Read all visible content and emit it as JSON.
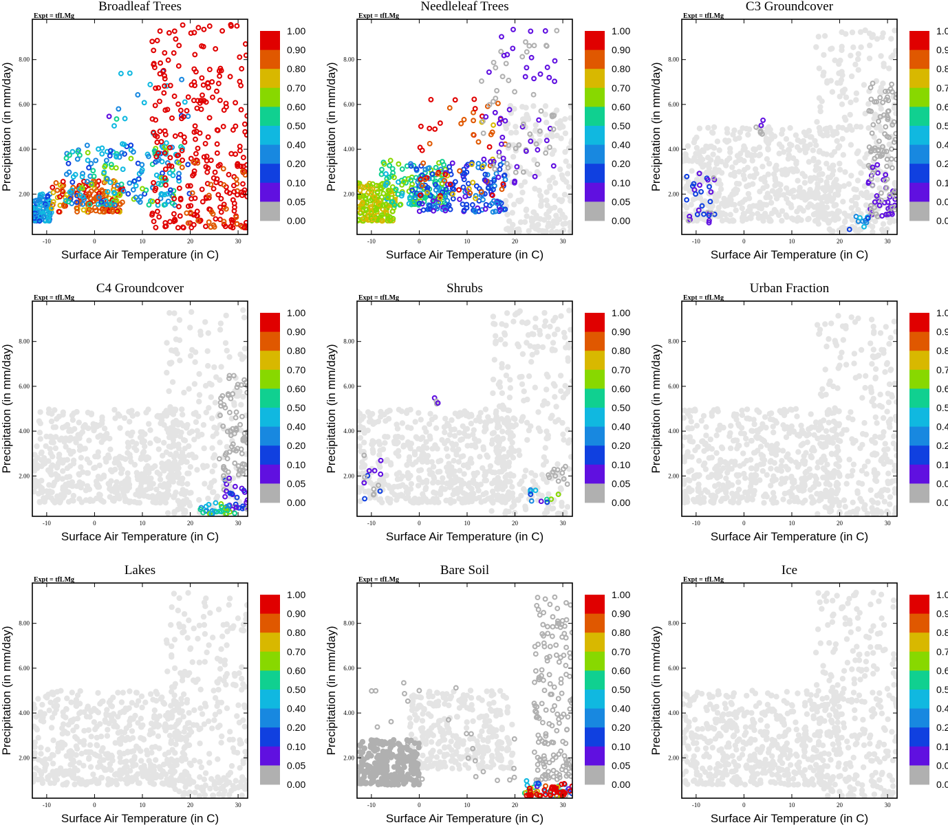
{
  "figure": {
    "experiment_label": "Expt = tfLMg",
    "colors": {
      "background_points": "#e4e4e4",
      "zero_points": "#b0b0b0",
      "frame": "#000000"
    }
  },
  "colorbar": {
    "levels": [
      "1.00",
      "0.90",
      "0.80",
      "0.70",
      "0.60",
      "0.50",
      "0.40",
      "0.20",
      "0.10",
      "0.05",
      "0.00"
    ],
    "colors": [
      "#e00000",
      "#e05800",
      "#d8b800",
      "#88d800",
      "#10d090",
      "#10b8e0",
      "#1888e0",
      "#1040e0",
      "#6010e0",
      "#b0b0b0"
    ]
  },
  "chart_data": [
    {
      "type": "scatter",
      "title": "Broadleaf Trees",
      "xlabel": "Surface Air Temperature (in C)",
      "ylabel": "Precipitation (in mm/day)",
      "xlim": [
        -13,
        32
      ],
      "ylim": [
        0.2,
        9.8
      ],
      "xticks": [
        "-10",
        "0",
        "10",
        "20",
        "30"
      ],
      "yticks": [
        "2.00",
        "4.00",
        "6.00",
        "8.00"
      ],
      "clusters": [
        {
          "x": [
            -13,
            -9
          ],
          "y": [
            0.8,
            2.0
          ],
          "n": 90,
          "c": [
            0.1,
            0.45
          ],
          "filled": false
        },
        {
          "x": [
            -9,
            6
          ],
          "y": [
            1.2,
            2.6
          ],
          "n": 150,
          "c": [
            0.7,
            0.9
          ],
          "filled": false
        },
        {
          "x": [
            -6,
            18
          ],
          "y": [
            1.5,
            4.2
          ],
          "n": 160,
          "c": [
            0.1,
            0.6
          ],
          "filled": false
        },
        {
          "x": [
            3,
            20
          ],
          "y": [
            2.0,
            7.8
          ],
          "n": 40,
          "c": [
            0.05,
            0.5
          ],
          "filled": false
        },
        {
          "x": [
            12,
            32
          ],
          "y": [
            0.5,
            9.6
          ],
          "n": 240,
          "c": [
            0.9,
            1.0
          ],
          "filled": false
        },
        {
          "x": [
            18,
            32
          ],
          "y": [
            0.5,
            3.5
          ],
          "n": 60,
          "c": [
            0.8,
            0.9
          ],
          "filled": false
        }
      ]
    },
    {
      "type": "scatter",
      "title": "Needleleaf Trees",
      "xlabel": "Surface Air Temperature (in C)",
      "ylabel": "Precipitation (in mm/day)",
      "xlim": [
        -13,
        32
      ],
      "ylim": [
        0.2,
        9.8
      ],
      "xticks": [
        "-10",
        "0",
        "10",
        "20",
        "30"
      ],
      "yticks": [
        "2.00",
        "4.00",
        "6.00",
        "8.00"
      ],
      "clusters": [
        {
          "x": [
            -13,
            -5
          ],
          "y": [
            0.8,
            2.5
          ],
          "n": 160,
          "c": [
            0.6,
            0.7
          ],
          "filled": false
        },
        {
          "x": [
            -8,
            6
          ],
          "y": [
            1.5,
            3.5
          ],
          "n": 120,
          "c": [
            0.4,
            0.6
          ],
          "filled": false
        },
        {
          "x": [
            -2,
            18
          ],
          "y": [
            1.2,
            3.5
          ],
          "n": 160,
          "c": [
            0.05,
            0.2
          ],
          "filled": false
        },
        {
          "x": [
            0,
            18
          ],
          "y": [
            1.8,
            6.3
          ],
          "n": 60,
          "c": [
            0.7,
            0.9
          ],
          "filled": false
        },
        {
          "x": [
            13,
            29
          ],
          "y": [
            2.5,
            9.4
          ],
          "n": 90,
          "c": [
            0.0,
            0.05
          ],
          "filled": false
        },
        {
          "x": [
            18,
            32
          ],
          "y": [
            0.3,
            6.0
          ],
          "n": 180,
          "c": [
            -1,
            -1
          ],
          "filled": true
        }
      ]
    },
    {
      "type": "scatter",
      "title": "C3 Groundcover",
      "xlabel": "Surface Air Temperature (in C)",
      "ylabel": "Precipitation (in mm/day)",
      "xlim": [
        -13,
        32
      ],
      "ylim": [
        0.2,
        9.8
      ],
      "xticks": [
        "-10",
        "0",
        "10",
        "20",
        "30"
      ],
      "yticks": [
        "2.00",
        "4.00",
        "6.00",
        "8.00"
      ],
      "clusters": [
        {
          "x": [
            -13,
            20
          ],
          "y": [
            0.8,
            5.0
          ],
          "n": 520,
          "c": [
            -1,
            -1
          ],
          "filled": true
        },
        {
          "x": [
            15,
            32
          ],
          "y": [
            0.3,
            9.4
          ],
          "n": 260,
          "c": [
            -1,
            -1
          ],
          "filled": true
        },
        {
          "x": [
            -12,
            -6
          ],
          "y": [
            0.7,
            3.0
          ],
          "n": 30,
          "c": [
            0.0,
            0.1
          ],
          "filled": false
        },
        {
          "x": [
            2,
            5
          ],
          "y": [
            4.6,
            5.7
          ],
          "n": 6,
          "c": [
            0.0,
            0.05
          ],
          "filled": false
        },
        {
          "x": [
            26,
            32
          ],
          "y": [
            1.0,
            3.5
          ],
          "n": 60,
          "c": [
            0.0,
            0.05
          ],
          "filled": false
        },
        {
          "x": [
            22,
            26
          ],
          "y": [
            0.4,
            1.0
          ],
          "n": 10,
          "c": [
            0.1,
            0.45
          ],
          "filled": false
        },
        {
          "x": [
            26,
            32
          ],
          "y": [
            3.5,
            7.0
          ],
          "n": 60,
          "c": [
            0.0,
            0.0
          ],
          "filled": false
        }
      ]
    },
    {
      "type": "scatter",
      "title": "C4 Groundcover",
      "xlabel": "Surface Air Temperature (in C)",
      "ylabel": "Precipitation (in mm/day)",
      "xlim": [
        -13,
        32
      ],
      "ylim": [
        0.2,
        9.8
      ],
      "xticks": [
        "-10",
        "0",
        "10",
        "20",
        "30"
      ],
      "yticks": [
        "2.00",
        "4.00",
        "6.00",
        "8.00"
      ],
      "clusters": [
        {
          "x": [
            -13,
            20
          ],
          "y": [
            0.8,
            5.0
          ],
          "n": 520,
          "c": [
            -1,
            -1
          ],
          "filled": true
        },
        {
          "x": [
            15,
            32
          ],
          "y": [
            0.3,
            9.4
          ],
          "n": 200,
          "c": [
            -1,
            -1
          ],
          "filled": true
        },
        {
          "x": [
            26,
            32
          ],
          "y": [
            2.0,
            6.5
          ],
          "n": 70,
          "c": [
            0.0,
            0.0
          ],
          "filled": false
        },
        {
          "x": [
            27,
            32
          ],
          "y": [
            0.5,
            2.4
          ],
          "n": 30,
          "c": [
            0.0,
            0.1
          ],
          "filled": false
        },
        {
          "x": [
            22,
            30
          ],
          "y": [
            0.3,
            0.8
          ],
          "n": 30,
          "c": [
            0.2,
            0.6
          ],
          "filled": false
        }
      ]
    },
    {
      "type": "scatter",
      "title": "Shrubs",
      "xlabel": "Surface Air Temperature (in C)",
      "ylabel": "Precipitation (in mm/day)",
      "xlim": [
        -13,
        32
      ],
      "ylim": [
        0.2,
        9.8
      ],
      "xticks": [
        "-10",
        "0",
        "10",
        "20",
        "30"
      ],
      "yticks": [
        "2.00",
        "4.00",
        "6.00",
        "8.00"
      ],
      "clusters": [
        {
          "x": [
            -13,
            20
          ],
          "y": [
            0.8,
            5.0
          ],
          "n": 520,
          "c": [
            -1,
            -1
          ],
          "filled": true
        },
        {
          "x": [
            15,
            32
          ],
          "y": [
            0.3,
            9.4
          ],
          "n": 240,
          "c": [
            -1,
            -1
          ],
          "filled": true
        },
        {
          "x": [
            -12,
            -7
          ],
          "y": [
            0.9,
            3.0
          ],
          "n": 14,
          "c": [
            0.0,
            0.1
          ],
          "filled": false
        },
        {
          "x": [
            2,
            4
          ],
          "y": [
            4.7,
            5.6
          ],
          "n": 4,
          "c": [
            0.0,
            0.05
          ],
          "filled": false
        },
        {
          "x": [
            23,
            30
          ],
          "y": [
            0.8,
            1.4
          ],
          "n": 10,
          "c": [
            0.05,
            0.6
          ],
          "filled": false
        },
        {
          "x": [
            26,
            31
          ],
          "y": [
            1.5,
            2.5
          ],
          "n": 12,
          "c": [
            0.0,
            0.0
          ],
          "filled": false
        }
      ]
    },
    {
      "type": "scatter",
      "title": "Urban Fraction",
      "xlabel": "Surface Air Temperature (in C)",
      "ylabel": "Precipitation (in mm/day)",
      "xlim": [
        -13,
        32
      ],
      "ylim": [
        0.2,
        9.8
      ],
      "xticks": [
        "-10",
        "0",
        "10",
        "20",
        "30"
      ],
      "yticks": [
        "2.00",
        "4.00",
        "6.00",
        "8.00"
      ],
      "clusters": [
        {
          "x": [
            -13,
            20
          ],
          "y": [
            0.8,
            5.0
          ],
          "n": 520,
          "c": [
            -1,
            -1
          ],
          "filled": true
        },
        {
          "x": [
            15,
            32
          ],
          "y": [
            0.3,
            9.4
          ],
          "n": 260,
          "c": [
            -1,
            -1
          ],
          "filled": true
        }
      ]
    },
    {
      "type": "scatter",
      "title": "Lakes",
      "xlabel": "Surface Air Temperature (in C)",
      "ylabel": "Precipitation (in mm/day)",
      "xlim": [
        -13,
        32
      ],
      "ylim": [
        0.2,
        9.8
      ],
      "xticks": [
        "-10",
        "0",
        "10",
        "20",
        "30"
      ],
      "yticks": [
        "2.00",
        "4.00",
        "6.00",
        "8.00"
      ],
      "clusters": [
        {
          "x": [
            -13,
            20
          ],
          "y": [
            0.8,
            5.0
          ],
          "n": 520,
          "c": [
            -1,
            -1
          ],
          "filled": true
        },
        {
          "x": [
            15,
            32
          ],
          "y": [
            0.3,
            9.4
          ],
          "n": 260,
          "c": [
            -1,
            -1
          ],
          "filled": true
        }
      ]
    },
    {
      "type": "scatter",
      "title": "Bare Soil",
      "xlabel": "Surface Air Temperature (in C)",
      "ylabel": "Precipitation (in mm/day)",
      "xlim": [
        -13,
        32
      ],
      "ylim": [
        0.2,
        9.8
      ],
      "xticks": [
        "-10",
        "0",
        "10",
        "20",
        "30"
      ],
      "yticks": [
        "2.00",
        "4.00",
        "6.00",
        "8.00"
      ],
      "clusters": [
        {
          "x": [
            -2,
            20
          ],
          "y": [
            1.5,
            5.0
          ],
          "n": 300,
          "c": [
            -1,
            -1
          ],
          "filled": true
        },
        {
          "x": [
            -13,
            0
          ],
          "y": [
            0.8,
            2.8
          ],
          "n": 240,
          "c": [
            0.0,
            0.0
          ],
          "filled": true
        },
        {
          "x": [
            -13,
            20
          ],
          "y": [
            0.8,
            5.5
          ],
          "n": 30,
          "c": [
            0.0,
            0.0
          ],
          "filled": false
        },
        {
          "x": [
            24,
            32
          ],
          "y": [
            1.0,
            9.2
          ],
          "n": 160,
          "c": [
            0.0,
            0.0
          ],
          "filled": false
        },
        {
          "x": [
            22,
            32
          ],
          "y": [
            0.3,
            1.0
          ],
          "n": 45,
          "c": [
            0.0,
            1.0
          ],
          "filled": false
        },
        {
          "x": [
            22,
            32
          ],
          "y": [
            0.3,
            0.7
          ],
          "n": 30,
          "c": [
            0.9,
            1.0
          ],
          "filled": false
        }
      ]
    },
    {
      "type": "scatter",
      "title": "Ice",
      "xlabel": "Surface Air Temperature (in C)",
      "ylabel": "Precipitation (in mm/day)",
      "xlim": [
        -13,
        32
      ],
      "ylim": [
        0.2,
        9.8
      ],
      "xticks": [
        "-10",
        "0",
        "10",
        "20",
        "30"
      ],
      "yticks": [
        "2.00",
        "4.00",
        "6.00",
        "8.00"
      ],
      "clusters": [
        {
          "x": [
            -13,
            20
          ],
          "y": [
            0.8,
            5.0
          ],
          "n": 520,
          "c": [
            -1,
            -1
          ],
          "filled": true
        },
        {
          "x": [
            15,
            32
          ],
          "y": [
            0.3,
            9.4
          ],
          "n": 260,
          "c": [
            -1,
            -1
          ],
          "filled": true
        }
      ]
    }
  ]
}
